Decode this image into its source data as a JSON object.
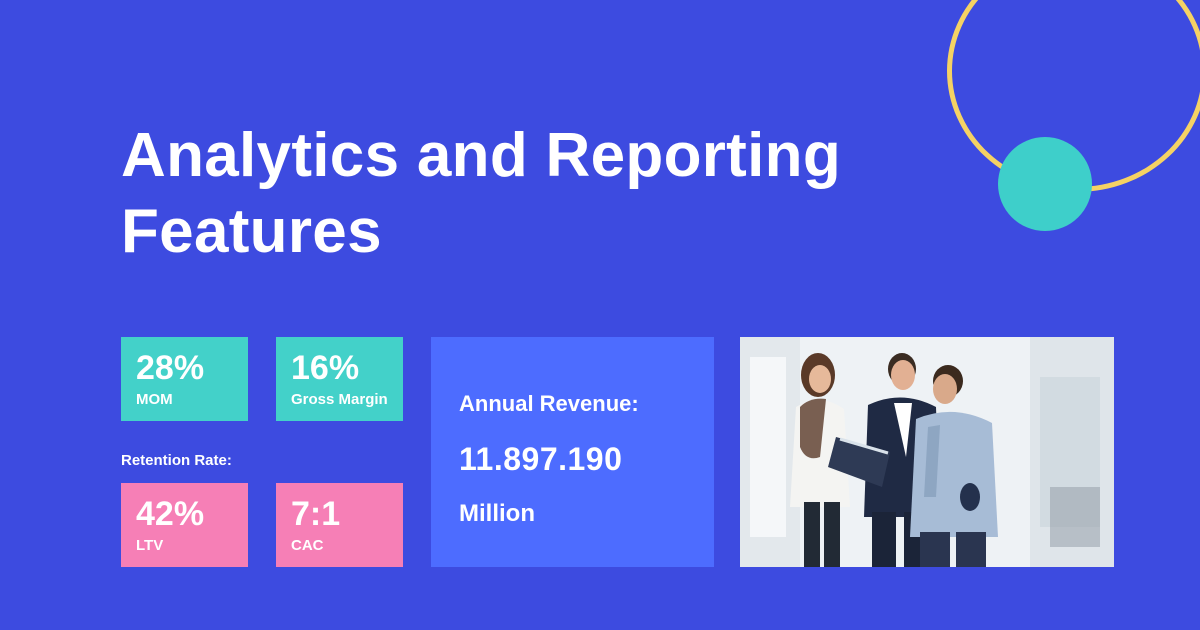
{
  "title": "Analytics and Reporting Features",
  "metrics": [
    {
      "value": "28%",
      "label": "MOM"
    },
    {
      "value": "16%",
      "label": "Gross Margin"
    },
    {
      "value": "42%",
      "label": "LTV"
    },
    {
      "value": "7:1",
      "label": "CAC"
    }
  ],
  "retention_label": "Retention Rate:",
  "revenue": {
    "label": "Annual Revenue:",
    "value": "11.897.190",
    "unit": "Million"
  },
  "colors": {
    "background": "#3d4be0",
    "teal": "#43d1c9",
    "pink": "#f67fb6",
    "revenue_panel": "#4d6cff",
    "ring": "#f5d264"
  }
}
